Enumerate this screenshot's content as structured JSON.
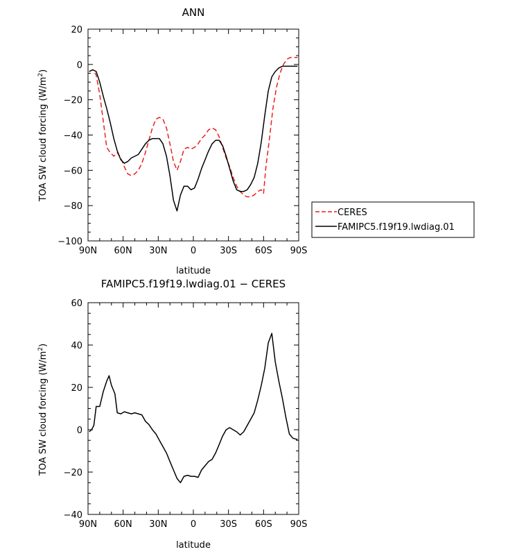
{
  "chart_data": [
    {
      "type": "line",
      "title": "ANN",
      "xlabel": "latitude",
      "ylabel_main": "TOA SW cloud forcing (W/m",
      "ylabel_sup": "2",
      "ylabel_tail": ")",
      "xlim": [
        90,
        -90
      ],
      "ylim": [
        -100,
        20
      ],
      "x_ticks": [
        {
          "v": 90,
          "label": "90N"
        },
        {
          "v": 60,
          "label": "60N"
        },
        {
          "v": 30,
          "label": "30N"
        },
        {
          "v": 0,
          "label": "0"
        },
        {
          "v": -30,
          "label": "30S"
        },
        {
          "v": -60,
          "label": "60S"
        },
        {
          "v": -90,
          "label": "90S"
        }
      ],
      "y_ticks": [
        {
          "v": 20,
          "label": "20"
        },
        {
          "v": 0,
          "label": "0"
        },
        {
          "v": -20,
          "label": "−20"
        },
        {
          "v": -40,
          "label": "−40"
        },
        {
          "v": -60,
          "label": "−60"
        },
        {
          "v": -80,
          "label": "−80"
        },
        {
          "v": -100,
          "label": "−100"
        }
      ],
      "legend_position": "right",
      "series": [
        {
          "name": "CERES",
          "color": "#e8201b",
          "dash": true,
          "points": [
            [
              89,
              -4
            ],
            [
              86,
              -3
            ],
            [
              83,
              -6
            ],
            [
              80,
              -17
            ],
            [
              77,
              -32
            ],
            [
              74,
              -47
            ],
            [
              71,
              -50
            ],
            [
              68,
              -52
            ],
            [
              65,
              -50
            ],
            [
              62,
              -53
            ],
            [
              59,
              -58
            ],
            [
              56,
              -62
            ],
            [
              53,
              -63
            ],
            [
              50,
              -62
            ],
            [
              47,
              -60
            ],
            [
              44,
              -56
            ],
            [
              41,
              -50
            ],
            [
              38,
              -43
            ],
            [
              35,
              -36
            ],
            [
              32,
              -31
            ],
            [
              29,
              -30
            ],
            [
              26,
              -31
            ],
            [
              23,
              -36
            ],
            [
              20,
              -45
            ],
            [
              17,
              -55
            ],
            [
              14,
              -60
            ],
            [
              11,
              -55
            ],
            [
              8,
              -48
            ],
            [
              5,
              -47
            ],
            [
              2,
              -48
            ],
            [
              -1,
              -47
            ],
            [
              -4,
              -45
            ],
            [
              -7,
              -42
            ],
            [
              -10,
              -40
            ],
            [
              -13,
              -37
            ],
            [
              -16,
              -36
            ],
            [
              -19,
              -37
            ],
            [
              -22,
              -41
            ],
            [
              -25,
              -47
            ],
            [
              -28,
              -53
            ],
            [
              -31,
              -58
            ],
            [
              -34,
              -64
            ],
            [
              -37,
              -69
            ],
            [
              -40,
              -72
            ],
            [
              -43,
              -74
            ],
            [
              -46,
              -75
            ],
            [
              -49,
              -75
            ],
            [
              -52,
              -74
            ],
            [
              -55,
              -72
            ],
            [
              -58,
              -71
            ],
            [
              -60,
              -73
            ],
            [
              -62,
              -58
            ],
            [
              -65,
              -42
            ],
            [
              -68,
              -25
            ],
            [
              -71,
              -13
            ],
            [
              -74,
              -5
            ],
            [
              -77,
              0
            ],
            [
              -80,
              3
            ],
            [
              -83,
              4
            ],
            [
              -86,
              4
            ],
            [
              -89,
              4
            ]
          ]
        },
        {
          "name": "FAMIPC5.f19f19.lwdiag.01",
          "color": "#000000",
          "dash": false,
          "points": [
            [
              89,
              -4
            ],
            [
              86,
              -3
            ],
            [
              83,
              -4
            ],
            [
              80,
              -10
            ],
            [
              77,
              -18
            ],
            [
              74,
              -25
            ],
            [
              71,
              -33
            ],
            [
              68,
              -42
            ],
            [
              65,
              -49
            ],
            [
              62,
              -54
            ],
            [
              59,
              -56
            ],
            [
              56,
              -55
            ],
            [
              53,
              -53
            ],
            [
              50,
              -52
            ],
            [
              47,
              -51
            ],
            [
              44,
              -48
            ],
            [
              41,
              -45
            ],
            [
              38,
              -43
            ],
            [
              35,
              -42
            ],
            [
              32,
              -42
            ],
            [
              29,
              -42
            ],
            [
              26,
              -45
            ],
            [
              23,
              -52
            ],
            [
              20,
              -63
            ],
            [
              17,
              -77
            ],
            [
              14,
              -83
            ],
            [
              11,
              -74
            ],
            [
              8,
              -69
            ],
            [
              5,
              -69
            ],
            [
              2,
              -71
            ],
            [
              -1,
              -70
            ],
            [
              -4,
              -65
            ],
            [
              -7,
              -59
            ],
            [
              -10,
              -54
            ],
            [
              -13,
              -49
            ],
            [
              -16,
              -45
            ],
            [
              -19,
              -43
            ],
            [
              -22,
              -43
            ],
            [
              -25,
              -46
            ],
            [
              -28,
              -52
            ],
            [
              -31,
              -59
            ],
            [
              -34,
              -66
            ],
            [
              -37,
              -71
            ],
            [
              -40,
              -72
            ],
            [
              -43,
              -72
            ],
            [
              -46,
              -71
            ],
            [
              -49,
              -68
            ],
            [
              -52,
              -64
            ],
            [
              -55,
              -56
            ],
            [
              -58,
              -44
            ],
            [
              -61,
              -29
            ],
            [
              -64,
              -15
            ],
            [
              -67,
              -7
            ],
            [
              -70,
              -4
            ],
            [
              -73,
              -2
            ],
            [
              -76,
              -1
            ],
            [
              -79,
              -1
            ],
            [
              -82,
              -1
            ],
            [
              -85,
              -1
            ],
            [
              -88,
              -1
            ],
            [
              -89,
              -1
            ]
          ]
        }
      ]
    },
    {
      "type": "line",
      "title": "FAMIPC5.f19f19.lwdiag.01 − CERES",
      "xlabel": "latitude",
      "ylabel_main": "TOA SW cloud forcing (W/m",
      "ylabel_sup": "2",
      "ylabel_tail": ")",
      "xlim": [
        90,
        -90
      ],
      "ylim": [
        -40,
        60
      ],
      "x_ticks": [
        {
          "v": 90,
          "label": "90N"
        },
        {
          "v": 60,
          "label": "60N"
        },
        {
          "v": 30,
          "label": "30N"
        },
        {
          "v": 0,
          "label": "0"
        },
        {
          "v": -30,
          "label": "30S"
        },
        {
          "v": -60,
          "label": "60S"
        },
        {
          "v": -90,
          "label": "90S"
        }
      ],
      "y_ticks": [
        {
          "v": 60,
          "label": "60"
        },
        {
          "v": 40,
          "label": "40"
        },
        {
          "v": 20,
          "label": "20"
        },
        {
          "v": 0,
          "label": "0"
        },
        {
          "v": -20,
          "label": "−20"
        },
        {
          "v": -40,
          "label": "−40"
        }
      ],
      "series": [
        {
          "color": "#000000",
          "dash": false,
          "points": [
            [
              89,
              -1
            ],
            [
              87,
              0
            ],
            [
              85,
              2
            ],
            [
              83,
              11
            ],
            [
              80,
              11
            ],
            [
              77,
              18
            ],
            [
              74,
              23
            ],
            [
              72,
              25.5
            ],
            [
              70,
              21
            ],
            [
              67,
              17
            ],
            [
              65,
              8
            ],
            [
              62,
              7.5
            ],
            [
              59,
              8.5
            ],
            [
              56,
              8
            ],
            [
              53,
              7.5
            ],
            [
              50,
              8
            ],
            [
              47,
              7.5
            ],
            [
              44,
              7
            ],
            [
              41,
              4
            ],
            [
              38,
              2.5
            ],
            [
              35,
              0
            ],
            [
              32,
              -2
            ],
            [
              29,
              -5
            ],
            [
              26,
              -8
            ],
            [
              23,
              -11
            ],
            [
              20,
              -15
            ],
            [
              17,
              -19
            ],
            [
              14,
              -23
            ],
            [
              11,
              -25
            ],
            [
              8,
              -22
            ],
            [
              5,
              -21.5
            ],
            [
              2,
              -22
            ],
            [
              -1,
              -22
            ],
            [
              -4,
              -22.5
            ],
            [
              -7,
              -19
            ],
            [
              -10,
              -17
            ],
            [
              -13,
              -15
            ],
            [
              -16,
              -14
            ],
            [
              -19,
              -11
            ],
            [
              -22,
              -7
            ],
            [
              -25,
              -3
            ],
            [
              -28,
              0
            ],
            [
              -31,
              1
            ],
            [
              -34,
              0
            ],
            [
              -37,
              -1
            ],
            [
              -40,
              -2.5
            ],
            [
              -43,
              -1
            ],
            [
              -46,
              2
            ],
            [
              -49,
              5
            ],
            [
              -52,
              8
            ],
            [
              -55,
              14
            ],
            [
              -58,
              21
            ],
            [
              -61,
              29
            ],
            [
              -64,
              41
            ],
            [
              -67,
              45.5
            ],
            [
              -70,
              32
            ],
            [
              -73,
              23
            ],
            [
              -76,
              15
            ],
            [
              -79,
              6
            ],
            [
              -82,
              -2
            ],
            [
              -85,
              -4
            ],
            [
              -88,
              -4.5
            ],
            [
              -89,
              -4.5
            ]
          ]
        }
      ]
    }
  ]
}
